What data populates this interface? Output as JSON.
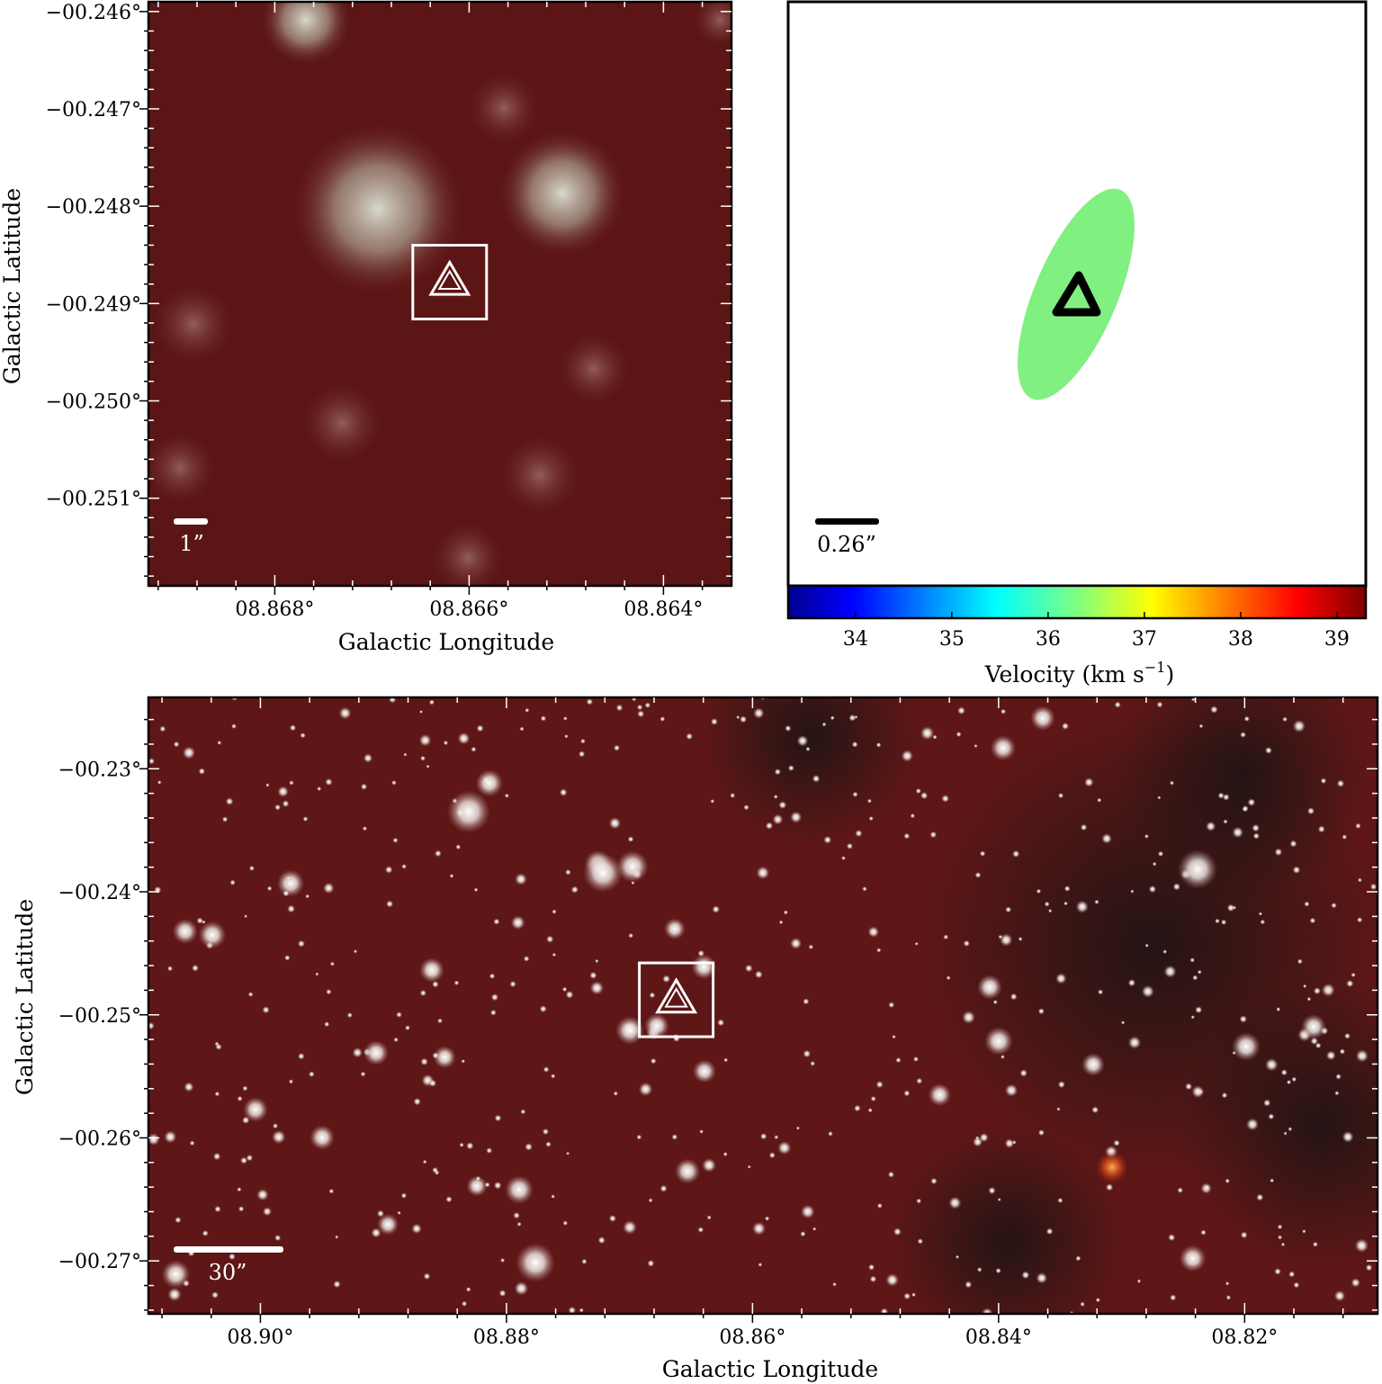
{
  "colors": {
    "background_red": "#5e1616",
    "ellipse_green": "#80f080",
    "marker_white": "#ffffff",
    "marker_black": "#000000"
  },
  "chart_data": [
    {
      "id": "zoom",
      "type": "image",
      "xlabel": "Galactic Longitude",
      "ylabel": "Galactic Latitude",
      "x_ticks": [
        "08.868°",
        "08.866°",
        "08.864°"
      ],
      "x_tick_values": [
        8.868,
        8.866,
        8.864
      ],
      "xlim": [
        8.8693,
        8.8633
      ],
      "y_ticks": [
        "−00.246°",
        "−00.247°",
        "−00.248°",
        "−00.249°",
        "−00.250°",
        "−00.251°"
      ],
      "y_tick_values": [
        -0.246,
        -0.247,
        -0.248,
        -0.249,
        -0.25,
        -0.251
      ],
      "ylim": [
        -0.2459,
        -0.2519
      ],
      "scale_bar": "1”",
      "source": {
        "l": 8.8662,
        "b": -0.24878,
        "marker": "triangle-in-square"
      }
    },
    {
      "id": "velocity",
      "type": "ellipse",
      "colorbar_label": "Velocity (km s",
      "colorbar_label_sup": "−1",
      "colorbar_label_end": ")",
      "colorbar_ticks": [
        "34",
        "35",
        "36",
        "37",
        "38",
        "39"
      ],
      "colorbar_tick_values": [
        34,
        35,
        36,
        37,
        38,
        39
      ],
      "colorbar_range": [
        33.3,
        39.3
      ],
      "scale_bar": "0.26”",
      "ellipse_velocity": 36.2
    },
    {
      "id": "wide",
      "type": "image",
      "xlabel": "Galactic Longitude",
      "ylabel": "Galactic Latitude",
      "x_ticks": [
        "08.90°",
        "08.88°",
        "08.86°",
        "08.84°",
        "08.82°"
      ],
      "x_tick_values": [
        8.9,
        8.88,
        8.86,
        8.84,
        8.82
      ],
      "xlim": [
        8.9091,
        8.8092
      ],
      "y_ticks": [
        "−00.23°",
        "−00.24°",
        "−00.25°",
        "−00.26°",
        "−00.27°"
      ],
      "y_tick_values": [
        -0.23,
        -0.24,
        -0.25,
        -0.26,
        -0.27
      ],
      "ylim": [
        -0.2242,
        -0.2743
      ],
      "scale_bar": "30”",
      "source": {
        "l": 8.8662,
        "b": -0.24878,
        "marker": "triangle-in-square"
      }
    }
  ]
}
